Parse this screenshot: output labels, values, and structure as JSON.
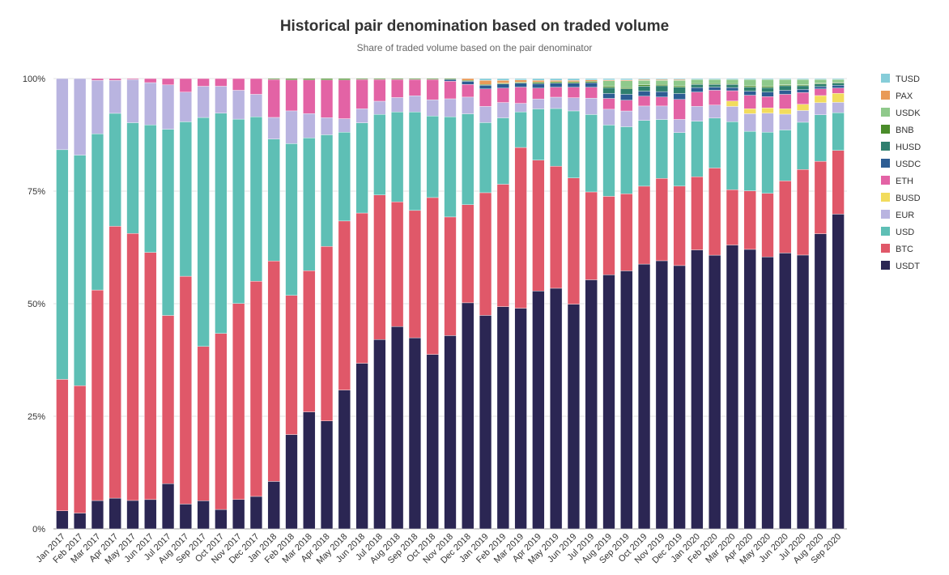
{
  "chart_data": {
    "type": "bar",
    "stacked": true,
    "title": "Historical pair denomination based on traded volume",
    "subtitle": "Share of traded volume based on the pair denominator",
    "xlabel": "",
    "ylabel": "",
    "ylim": [
      0,
      100
    ],
    "y_ticks": [
      "0%",
      "25%",
      "50%",
      "75%",
      "100%"
    ],
    "grid": true,
    "legend_position": "right",
    "categories": [
      "Jan 2017",
      "Feb 2017",
      "Mar 2017",
      "Apr 2017",
      "May 2017",
      "Jun 2017",
      "Jul 2017",
      "Aug 2017",
      "Sep 2017",
      "Oct 2017",
      "Nov 2017",
      "Dec 2017",
      "Jan 2018",
      "Feb 2018",
      "Mar 2018",
      "Apr 2018",
      "May 2018",
      "Jun 2018",
      "Jul 2018",
      "Aug 2018",
      "Sep 2018",
      "Oct 2018",
      "Nov 2018",
      "Dec 2018",
      "Jan 2019",
      "Feb 2019",
      "Mar 2019",
      "Apr 2019",
      "May 2019",
      "Jun 2019",
      "Jul 2019",
      "Aug 2019",
      "Sep 2019",
      "Oct 2019",
      "Nov 2019",
      "Dec 2019",
      "Jan 2020",
      "Feb 2020",
      "Mar 2020",
      "Apr 2020",
      "May 2020",
      "Jun 2020",
      "Jul 2020",
      "Aug 2020",
      "Sep 2020"
    ],
    "series": [
      {
        "name": "USDT",
        "color": "#2b2653",
        "values": [
          4,
          3.5,
          6.3,
          6.8,
          6.3,
          6.5,
          10,
          5.5,
          6.2,
          4.3,
          6.5,
          7.2,
          10.5,
          21,
          26,
          24,
          30.8,
          36.7,
          41.8,
          44.8,
          42.3,
          38.7,
          43,
          50,
          47.5,
          49.2,
          49,
          52.5,
          53,
          49.3,
          54.7,
          56.3,
          57.3,
          58.8,
          59.6,
          58,
          62.2,
          60.9,
          63.1,
          62,
          60.4,
          61.2,
          60.8,
          66,
          70.1
        ]
      },
      {
        "name": "BTC",
        "color": "#e05869",
        "values": [
          29.2,
          28.3,
          46.9,
          60.2,
          59.3,
          54.9,
          37.2,
          50.6,
          34.1,
          39.1,
          43.5,
          47.8,
          48.8,
          31,
          31.4,
          38.8,
          37.5,
          33.3,
          31.9,
          27.6,
          28.2,
          34.8,
          26.4,
          21.7,
          27.3,
          27.1,
          35.7,
          28.9,
          26.9,
          27.7,
          19.3,
          17.4,
          17.1,
          17.3,
          18.3,
          17.5,
          16.3,
          19.4,
          12.3,
          13,
          14.1,
          16,
          19,
          16.2,
          14.2
        ]
      },
      {
        "name": "USD",
        "color": "#5ebfb5",
        "values": [
          51,
          51.2,
          34.8,
          25,
          24.6,
          28.3,
          41.2,
          34.3,
          50.6,
          48.9,
          40.9,
          36.5,
          27,
          33.8,
          29.5,
          24.8,
          19.7,
          20,
          17.8,
          19.9,
          21.8,
          18.1,
          22.3,
          20.1,
          15.6,
          14.7,
          7.9,
          11.3,
          12.7,
          14.7,
          17,
          15.8,
          14.9,
          14.6,
          13.1,
          11.8,
          12.4,
          11.1,
          15.1,
          13.2,
          13.6,
          11.3,
          10.5,
          10.4,
          8.4
        ]
      },
      {
        "name": "EUR",
        "color": "#b9b4e0",
        "values": [
          15.8,
          17,
          11.9,
          7.3,
          9.6,
          9.4,
          9.8,
          6.6,
          6.9,
          6,
          6.4,
          5,
          4.8,
          7.3,
          5.4,
          3.8,
          3,
          3.1,
          2.9,
          3.2,
          3.6,
          3.6,
          4,
          3.7,
          3.6,
          3.4,
          1.9,
          2.2,
          2.5,
          2.9,
          3.6,
          3.5,
          3.5,
          3.2,
          3,
          2.9,
          3.3,
          2.9,
          3.4,
          3.9,
          4.2,
          3.5,
          2.6,
          2.7,
          2.3
        ]
      },
      {
        "name": "BUSD",
        "color": "#f2dc5d",
        "values": [
          0,
          0,
          0,
          0,
          0,
          0,
          0,
          0,
          0,
          0,
          0,
          0,
          0,
          0,
          0,
          0,
          0,
          0,
          0,
          0,
          0,
          0,
          0,
          0,
          0,
          0,
          0,
          0,
          0,
          0,
          0,
          0,
          0,
          0,
          0,
          0,
          0,
          0,
          1.2,
          1.1,
          1.2,
          1.2,
          1.4,
          1.6,
          2
        ]
      },
      {
        "name": "ETH",
        "color": "#e363a5",
        "values": [
          0,
          0,
          0.4,
          0.4,
          0.2,
          0.9,
          1.4,
          3,
          1.7,
          1.7,
          2.6,
          3.5,
          8.4,
          6.9,
          7.5,
          8.4,
          8.6,
          6.5,
          4.8,
          4,
          3.6,
          4.5,
          3.9,
          2.8,
          3.9,
          3.2,
          3.6,
          2.4,
          2.2,
          2.3,
          2.4,
          2.4,
          2.4,
          2.2,
          2,
          4.4,
          3.2,
          3.3,
          2.3,
          3,
          2.5,
          3.2,
          2.6,
          1.5,
          1.2
        ]
      },
      {
        "name": "USDC",
        "color": "#2d5d93",
        "values": [
          0,
          0,
          0,
          0,
          0,
          0,
          0,
          0,
          0,
          0,
          0,
          0,
          0,
          0,
          0,
          0,
          0,
          0,
          0,
          0,
          0,
          0,
          0.4,
          0.7,
          0.8,
          0.9,
          0.9,
          1,
          0.9,
          0.9,
          1,
          1.1,
          1.3,
          1.1,
          1.2,
          1.3,
          1,
          0.7,
          0.7,
          0.9,
          1,
          0.9,
          0.7,
          0.5,
          0.6
        ]
      },
      {
        "name": "HUSD",
        "color": "#2f7f6e",
        "values": [
          0,
          0,
          0,
          0,
          0,
          0,
          0,
          0,
          0,
          0,
          0,
          0,
          0,
          0,
          0,
          0,
          0,
          0,
          0,
          0,
          0,
          0,
          0,
          0,
          0,
          0,
          0,
          0,
          0,
          0,
          0,
          1.3,
          1.2,
          1.1,
          1.3,
          1.4,
          0.7,
          0.6,
          0.7,
          0.9,
          1,
          1,
          0.8,
          0.6,
          0.5
        ]
      },
      {
        "name": "BNB",
        "color": "#4a8c2a",
        "values": [
          0,
          0,
          0,
          0,
          0,
          0,
          0,
          0,
          0,
          0,
          0,
          0,
          0.2,
          0.3,
          0.3,
          0.3,
          0.3,
          0.2,
          0.2,
          0.2,
          0.2,
          0.2,
          0.2,
          0.2,
          0.2,
          0.2,
          0.2,
          0.3,
          0.3,
          0.3,
          0.3,
          0.3,
          0.3,
          0.3,
          0.3,
          0.3,
          0.2,
          0.2,
          0.2,
          0.3,
          0.3,
          0.2,
          0.2,
          0.2,
          0.2
        ]
      },
      {
        "name": "USDK",
        "color": "#8fc98b",
        "values": [
          0,
          0,
          0,
          0,
          0,
          0,
          0,
          0,
          0,
          0,
          0,
          0,
          0,
          0,
          0,
          0,
          0,
          0,
          0,
          0,
          0,
          0,
          0,
          0,
          0,
          0,
          0,
          0,
          0,
          0,
          0,
          1.2,
          1.5,
          1,
          0.9,
          1.2,
          0.9,
          0.9,
          0.9,
          1.4,
          1.5,
          1.2,
          1.2,
          0.8,
          0.6
        ]
      },
      {
        "name": "PAX",
        "color": "#e99a57",
        "values": [
          0,
          0,
          0,
          0,
          0,
          0,
          0,
          0,
          0,
          0,
          0,
          0,
          0,
          0,
          0,
          0,
          0,
          0,
          0,
          0,
          0,
          0,
          0,
          0.4,
          0.9,
          0.6,
          0.5,
          0.4,
          0.3,
          0.3,
          0.3,
          0.2,
          0.2,
          0.2,
          0.2,
          0.2,
          0,
          0,
          0,
          0,
          0,
          0,
          0,
          0,
          0
        ]
      },
      {
        "name": "TUSD",
        "color": "#86cdd9",
        "values": [
          0,
          0,
          0,
          0,
          0,
          0,
          0,
          0,
          0,
          0,
          0,
          0,
          0,
          0,
          0,
          0,
          0,
          0,
          0,
          0,
          0,
          0,
          0,
          0,
          0.4,
          0.4,
          0.3,
          0.4,
          0.4,
          0.4,
          0.3,
          0.3,
          0.3,
          0.2,
          0.2,
          0.2,
          0.2,
          0.2,
          0.2,
          0.2,
          0.2,
          0.2,
          0.2,
          0.2,
          0.2
        ]
      }
    ],
    "legend_order": [
      "TUSD",
      "PAX",
      "USDK",
      "BNB",
      "HUSD",
      "USDC",
      "ETH",
      "BUSD",
      "EUR",
      "USD",
      "BTC",
      "USDT"
    ]
  }
}
